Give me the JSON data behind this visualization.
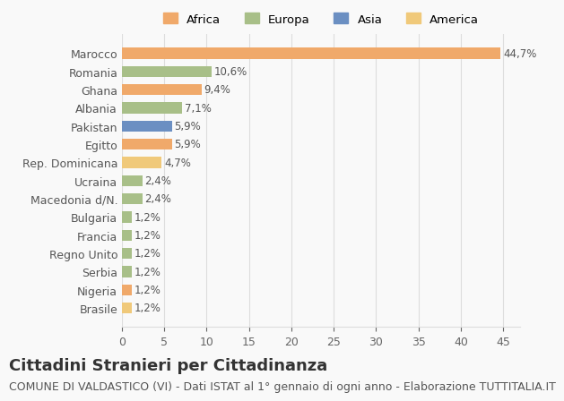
{
  "categories": [
    "Brasile",
    "Nigeria",
    "Serbia",
    "Regno Unito",
    "Francia",
    "Bulgaria",
    "Macedonia d/N.",
    "Ucraina",
    "Rep. Dominicana",
    "Egitto",
    "Pakistan",
    "Albania",
    "Ghana",
    "Romania",
    "Marocco"
  ],
  "values": [
    1.2,
    1.2,
    1.2,
    1.2,
    1.2,
    1.2,
    2.4,
    2.4,
    4.7,
    5.9,
    5.9,
    7.1,
    9.4,
    10.6,
    44.7
  ],
  "colors": [
    "#f0c97a",
    "#f0a96a",
    "#a8bf88",
    "#a8bf88",
    "#a8bf88",
    "#a8bf88",
    "#a8bf88",
    "#a8bf88",
    "#f0c97a",
    "#f0a96a",
    "#6b8fc2",
    "#a8bf88",
    "#f0a96a",
    "#a8bf88",
    "#f0a96a"
  ],
  "labels": [
    "1,2%",
    "1,2%",
    "1,2%",
    "1,2%",
    "1,2%",
    "1,2%",
    "2,4%",
    "2,4%",
    "4,7%",
    "5,9%",
    "5,9%",
    "7,1%",
    "9,4%",
    "10,6%",
    "44,7%"
  ],
  "legend_labels": [
    "Africa",
    "Europa",
    "Asia",
    "America"
  ],
  "legend_colors": [
    "#f0a96a",
    "#a8bf88",
    "#6b8fc2",
    "#f0c97a"
  ],
  "title": "Cittadini Stranieri per Cittadinanza",
  "subtitle": "COMUNE DI VALDASTICO (VI) - Dati ISTAT al 1° gennaio di ogni anno - Elaborazione TUTTITALIA.IT",
  "xlim": [
    0,
    47
  ],
  "xticks": [
    0,
    5,
    10,
    15,
    20,
    25,
    30,
    35,
    40,
    45
  ],
  "background_color": "#f9f9f9",
  "grid_color": "#dddddd",
  "bar_height": 0.6,
  "title_fontsize": 13,
  "subtitle_fontsize": 9,
  "label_fontsize": 8.5,
  "tick_fontsize": 9
}
